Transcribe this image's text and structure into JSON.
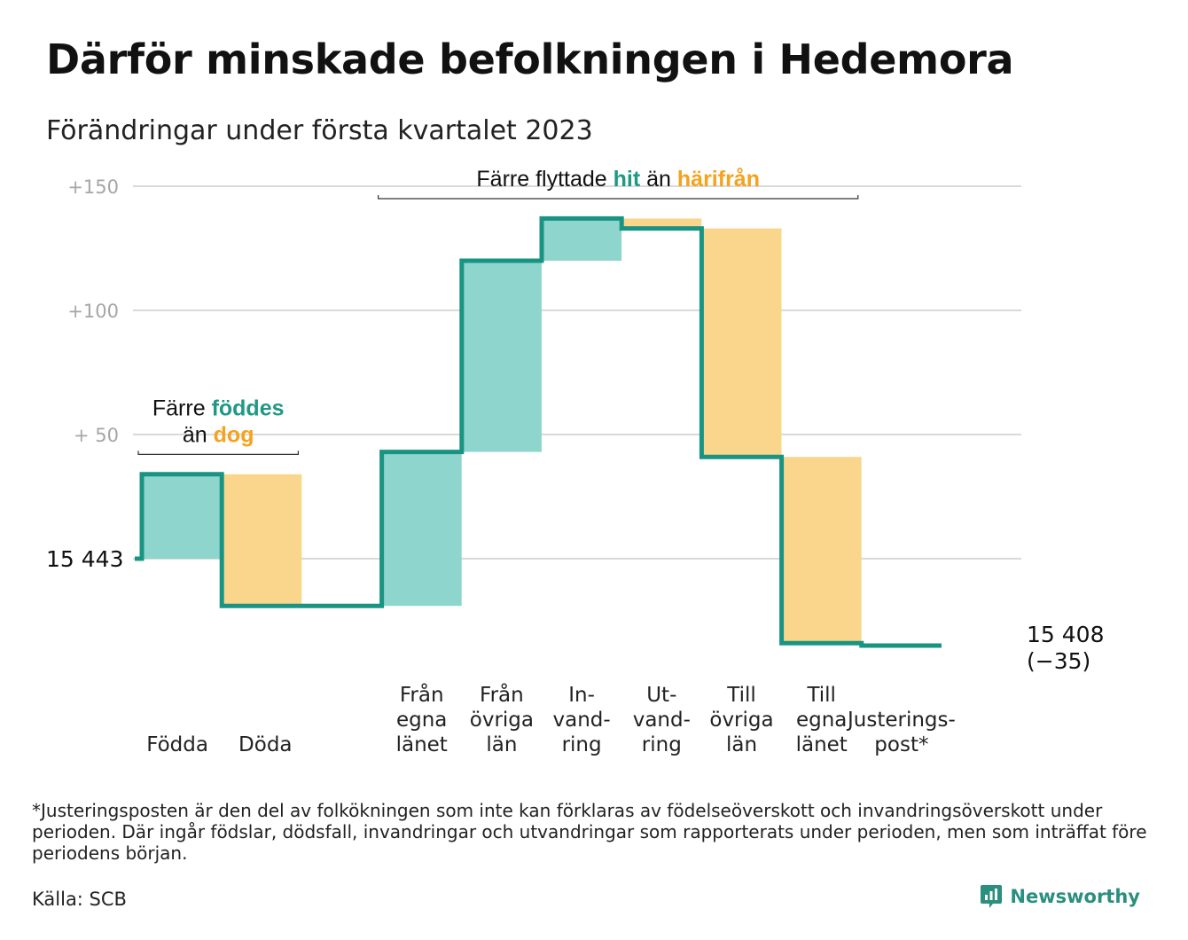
{
  "title": "Därför minskade befolkningen i Hedemora",
  "subtitle": "Förändringar under första kvartalet 2023",
  "colors": {
    "teal_line": "#1a9482",
    "teal_fill": "#8dd5cd",
    "orange_fill": "#fad68d",
    "teal_text": "#1f9985",
    "orange_text": "#f5a21d",
    "grid": "#d9d9d9",
    "tick_text": "#a6a6a6"
  },
  "chart_data": {
    "type": "waterfall",
    "start_label": "15 443",
    "end_label": "15 408",
    "end_change_label": "(−35)",
    "y_ticks": [
      {
        "value": 150,
        "label": "+150"
      },
      {
        "value": 100,
        "label": "+100"
      },
      {
        "value": 50,
        "label": "+ 50"
      }
    ],
    "ylim": [
      -40,
      150
    ],
    "steps": [
      {
        "label_lines": [
          "Födda"
        ],
        "from": 0,
        "to": 34,
        "kind": "in"
      },
      {
        "label_lines": [
          "Döda"
        ],
        "from": 34,
        "to": -19,
        "kind": "out"
      },
      {
        "label_lines": [
          ""
        ],
        "from": -19,
        "to": -19,
        "kind": "none"
      },
      {
        "label_lines": [
          "Från",
          "egna",
          "länet"
        ],
        "from": -19,
        "to": 43,
        "kind": "in"
      },
      {
        "label_lines": [
          "Från",
          "övriga",
          "län"
        ],
        "from": 43,
        "to": 120,
        "kind": "in"
      },
      {
        "label_lines": [
          "In-",
          "vand-",
          "ring"
        ],
        "from": 120,
        "to": 137,
        "kind": "in"
      },
      {
        "label_lines": [
          "Ut-",
          "vand-",
          "ring"
        ],
        "from": 137,
        "to": 133,
        "kind": "out"
      },
      {
        "label_lines": [
          "Till",
          "övriga",
          "län"
        ],
        "from": 133,
        "to": 41,
        "kind": "out"
      },
      {
        "label_lines": [
          "Till",
          "egna",
          "länet"
        ],
        "from": 41,
        "to": -34,
        "kind": "out"
      },
      {
        "label_lines": [
          "Justerings-",
          "post*"
        ],
        "from": -34,
        "to": -35,
        "kind": "none"
      }
    ],
    "annotations": [
      {
        "id": "births",
        "parts": [
          [
            {
              "text": "Färre ",
              "style": "normal"
            },
            {
              "text": "föddes",
              "style": "teal"
            }
          ],
          [
            {
              "text": "än ",
              "style": "normal"
            },
            {
              "text": "dog",
              "style": "orange"
            }
          ]
        ],
        "span": [
          0,
          1
        ],
        "value": 42
      },
      {
        "id": "moves",
        "parts": [
          [
            {
              "text": "Färre flyttade ",
              "style": "normal"
            },
            {
              "text": "hit",
              "style": "teal"
            },
            {
              "text": " än ",
              "style": "normal"
            },
            {
              "text": "härifrån",
              "style": "orange"
            }
          ]
        ],
        "span": [
          3,
          8
        ],
        "value": 145
      }
    ]
  },
  "footnote": "*Justeringsposten är den del av folkökningen som inte kan förklaras av födelseöverskott och invandringsöverskott under perioden. Där ingår födslar, dödsfall, invandringar och utvandringar som rapporterats under perioden, men som inträffat före periodens början.",
  "source": "Källa: SCB",
  "brand": {
    "name": "Newsworthy",
    "icon": "newsworthy-logo-icon"
  }
}
